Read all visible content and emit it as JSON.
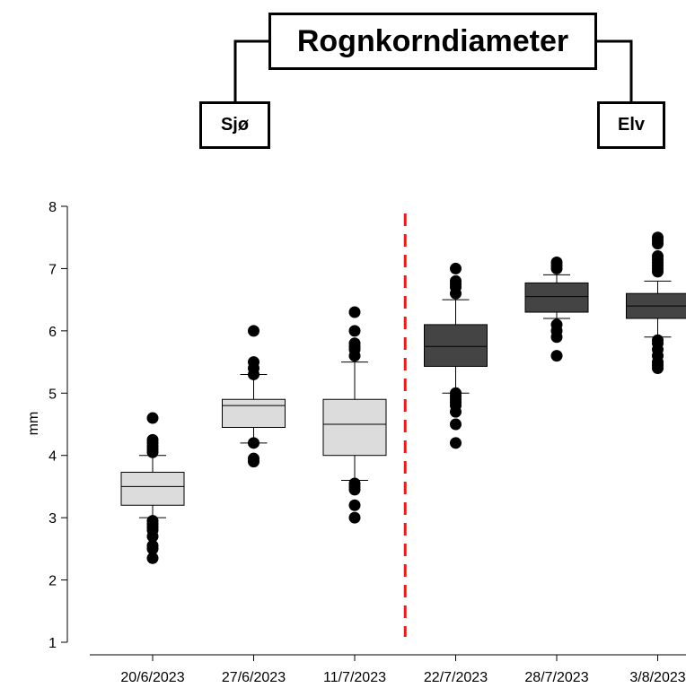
{
  "header": {
    "title": "Rognkorndiameter",
    "left_group": "Sjø",
    "right_group": "Elv"
  },
  "chart_data": {
    "type": "box",
    "ylabel": "mm",
    "xlabel": "",
    "ylim": [
      1,
      8
    ],
    "yticks": [
      1,
      2,
      3,
      4,
      5,
      6,
      7,
      8
    ],
    "categories": [
      "20/6/2023",
      "27/6/2023",
      "11/7/2023",
      "22/7/2023",
      "28/7/2023",
      "3/8/2023"
    ],
    "colors": {
      "Sjø": "#dcdcdc",
      "Elv": "#444444",
      "divider": "#e0201c"
    },
    "divider_between": [
      "11/7/2023",
      "22/7/2023"
    ],
    "grid": false,
    "boxes": [
      {
        "category": "20/6/2023",
        "group": "Sjø",
        "whisker_low": 3.0,
        "q1": 3.2,
        "median": 3.5,
        "q3": 3.73,
        "whisker_high": 4.0,
        "outliers": [
          4.6,
          4.25,
          4.2,
          4.15,
          4.1,
          4.05,
          2.95,
          2.9,
          2.85,
          2.8,
          2.7,
          2.55,
          2.5,
          2.35
        ]
      },
      {
        "category": "27/6/2023",
        "group": "Sjø",
        "whisker_low": 4.2,
        "q1": 4.45,
        "median": 4.8,
        "q3": 4.9,
        "whisker_high": 5.3,
        "outliers": [
          6.0,
          5.5,
          5.4,
          5.3,
          4.2,
          3.95,
          3.9
        ]
      },
      {
        "category": "11/7/2023",
        "group": "Sjø",
        "whisker_low": 3.6,
        "q1": 4.0,
        "median": 4.5,
        "q3": 4.9,
        "whisker_high": 5.5,
        "outliers": [
          6.3,
          6.0,
          5.8,
          5.75,
          5.7,
          5.6,
          3.55,
          3.5,
          3.45,
          3.2,
          3.0
        ]
      },
      {
        "category": "22/7/2023",
        "group": "Elv",
        "whisker_low": 5.0,
        "q1": 5.43,
        "median": 5.75,
        "q3": 6.1,
        "whisker_high": 6.5,
        "outliers": [
          7.0,
          6.8,
          6.75,
          6.7,
          6.6,
          5.0,
          4.95,
          4.9,
          4.85,
          4.8,
          4.7,
          4.5,
          4.2
        ]
      },
      {
        "category": "28/7/2023",
        "group": "Elv",
        "whisker_low": 6.2,
        "q1": 6.3,
        "median": 6.55,
        "q3": 6.77,
        "whisker_high": 6.9,
        "outliers": [
          7.1,
          7.05,
          7.0,
          6.1,
          6.0,
          5.9,
          5.6
        ]
      },
      {
        "category": "3/8/2023",
        "group": "Elv",
        "whisker_low": 5.9,
        "q1": 6.2,
        "median": 6.4,
        "q3": 6.6,
        "whisker_high": 6.8,
        "outliers": [
          7.5,
          7.45,
          7.4,
          7.2,
          7.15,
          7.1,
          7.05,
          7.0,
          6.95,
          5.85,
          5.8,
          5.7,
          5.6,
          5.5,
          5.45,
          5.4
        ]
      }
    ]
  }
}
